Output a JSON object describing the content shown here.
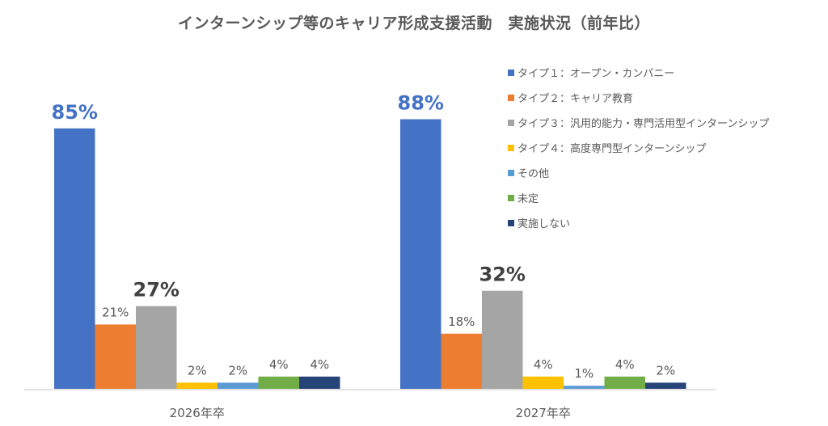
{
  "chart_data": {
    "type": "bar",
    "title": "インターンシップ等のキャリア形成支援活動　実施状況（前年比）",
    "categories": [
      "2026年卒",
      "2027年卒"
    ],
    "series": [
      {
        "name": "タイプ１：オープン・カンパニー",
        "color": "#4472C4",
        "values": [
          85,
          88
        ],
        "labels": [
          "85%",
          "88%"
        ]
      },
      {
        "name": "タイプ２：キャリア教育",
        "color": "#ED7D31",
        "values": [
          21,
          18
        ],
        "labels": [
          "21%",
          "18%"
        ]
      },
      {
        "name": "タイプ３：汎用的能力・専門活用型インターンシップ",
        "color": "#A5A5A5",
        "values": [
          27,
          32
        ],
        "labels": [
          "27%",
          "32%"
        ]
      },
      {
        "name": "タイプ４：高度専門型インターンシップ",
        "color": "#FFC000",
        "values": [
          2,
          4
        ],
        "labels": [
          "2%",
          "4%"
        ]
      },
      {
        "name": "その他",
        "color": "#5B9BD5",
        "values": [
          2,
          1
        ],
        "labels": [
          "2%",
          "1%"
        ]
      },
      {
        "name": "未定",
        "color": "#70AD47",
        "values": [
          4,
          4
        ],
        "labels": [
          "4%",
          "4%"
        ]
      },
      {
        "name": "実施しない",
        "color": "#264478",
        "values": [
          4,
          2
        ],
        "labels": [
          "4%",
          "2%"
        ]
      }
    ],
    "highlight": {
      "0": "#4472C4",
      "2": "#404040"
    },
    "ylim": [
      0,
      100
    ],
    "legend_position": "right",
    "grid": false
  }
}
